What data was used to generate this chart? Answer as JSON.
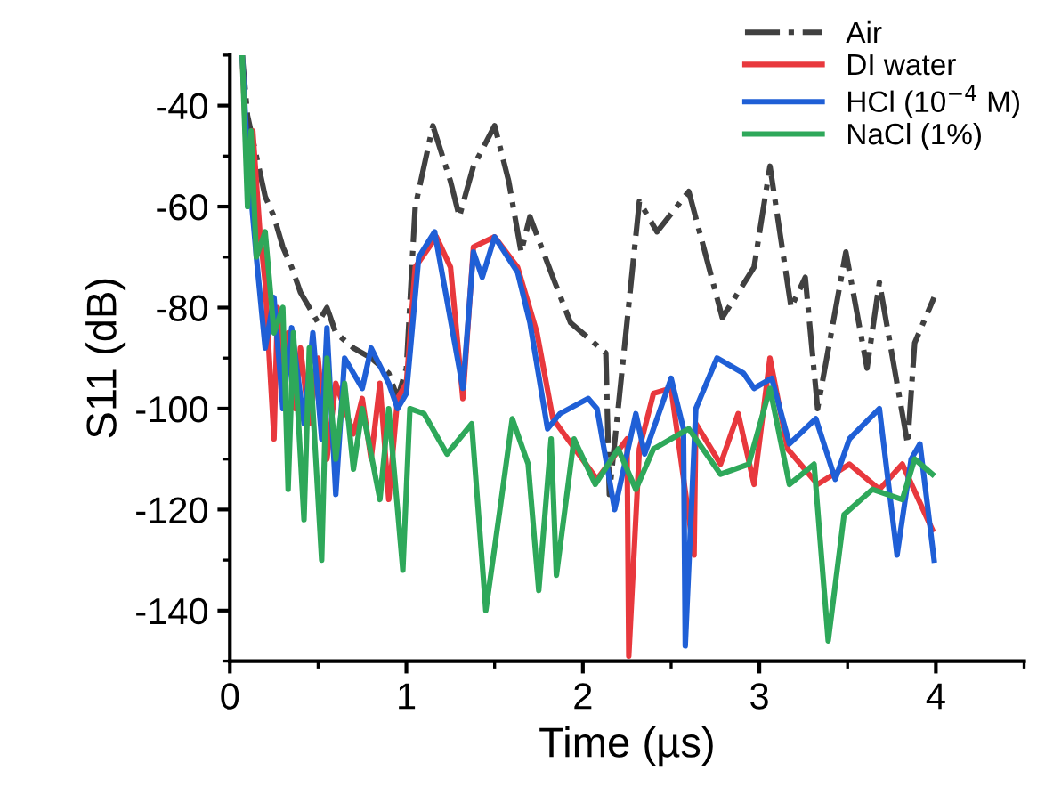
{
  "chart_data": {
    "type": "line",
    "xlabel": "Time (µs)",
    "ylabel": "S11 (dB)",
    "xlim": [
      0,
      4.5
    ],
    "ylim": [
      -150,
      -30
    ],
    "xticks": [
      0,
      1,
      2,
      3,
      4
    ],
    "yticks": [
      -140,
      -120,
      -100,
      -80,
      -60,
      -40
    ],
    "grid": false,
    "legend": "top right",
    "marker": "none",
    "series": [
      {
        "name": "Air",
        "color": "#404040",
        "line_style": "dashdot",
        "x": [
          0.07,
          0.1,
          0.15,
          0.2,
          0.25,
          0.3,
          0.35,
          0.4,
          0.45,
          0.5,
          0.55,
          0.6,
          0.7,
          0.8,
          0.9,
          0.95,
          1.0,
          1.05,
          1.15,
          1.25,
          1.3,
          1.38,
          1.5,
          1.58,
          1.65,
          1.7,
          1.83,
          1.93,
          2.13,
          2.15,
          2.32,
          2.42,
          2.6,
          2.79,
          2.97,
          3.06,
          3.18,
          3.26,
          3.33,
          3.49,
          3.61,
          3.68,
          3.84,
          3.88,
          3.99
        ],
        "values": [
          -30,
          -42,
          -50,
          -58,
          -62,
          -68,
          -72,
          -77,
          -80,
          -83,
          -80,
          -85,
          -88,
          -90,
          -93,
          -98,
          -92,
          -60,
          -44,
          -55,
          -62,
          -52,
          -44,
          -55,
          -69,
          -62,
          -74,
          -83,
          -89,
          -117,
          -59,
          -65,
          -57,
          -82,
          -72,
          -52,
          -80,
          -74,
          -100,
          -69,
          -92,
          -75,
          -107,
          -87,
          -78
        ]
      },
      {
        "name": "DI water",
        "color": "#e8383d",
        "x": [
          0.07,
          0.1,
          0.13,
          0.17,
          0.2,
          0.22,
          0.25,
          0.27,
          0.3,
          0.33,
          0.37,
          0.4,
          0.45,
          0.5,
          0.55,
          0.6,
          0.7,
          0.75,
          0.8,
          0.85,
          0.9,
          0.95,
          1.0,
          1.05,
          1.17,
          1.25,
          1.32,
          1.38,
          1.5,
          1.63,
          1.74,
          1.83,
          2.08,
          2.25,
          2.26,
          2.32,
          2.4,
          2.5,
          2.63,
          2.64,
          2.78,
          2.88,
          2.97,
          3.06,
          3.16,
          3.33,
          3.51,
          3.68,
          3.81,
          3.98
        ],
        "values": [
          -30,
          -55,
          -45,
          -65,
          -75,
          -88,
          -106,
          -80,
          -92,
          -85,
          -100,
          -88,
          -103,
          -90,
          -110,
          -95,
          -105,
          -98,
          -110,
          -95,
          -118,
          -98,
          -95,
          -72,
          -66,
          -72,
          -98,
          -68,
          -66,
          -72,
          -85,
          -102,
          -114,
          -106,
          -149,
          -108,
          -97,
          -96,
          -129,
          -103,
          -111,
          -101,
          -115,
          -90,
          -108,
          -115,
          -111,
          -116,
          -111,
          -124
        ]
      },
      {
        "name": "HCl (10$^{−4}$ M)",
        "color": "#1f5fd6",
        "x": [
          0.07,
          0.1,
          0.15,
          0.2,
          0.25,
          0.3,
          0.35,
          0.42,
          0.47,
          0.52,
          0.55,
          0.6,
          0.65,
          0.75,
          0.8,
          0.9,
          0.95,
          1.0,
          1.07,
          1.16,
          1.32,
          1.38,
          1.43,
          1.5,
          1.63,
          1.7,
          1.8,
          1.87,
          2.03,
          2.08,
          2.18,
          2.3,
          2.35,
          2.5,
          2.57,
          2.58,
          2.64,
          2.76,
          2.91,
          2.97,
          3.07,
          3.17,
          3.32,
          3.43,
          3.51,
          3.68,
          3.78,
          3.86,
          3.91,
          3.99
        ],
        "values": [
          -30,
          -50,
          -70,
          -88,
          -78,
          -100,
          -84,
          -103,
          -85,
          -106,
          -84,
          -117,
          -90,
          -96,
          -88,
          -95,
          -100,
          -97,
          -70,
          -65,
          -96,
          -69,
          -74,
          -66,
          -73,
          -83,
          -104,
          -101,
          -98,
          -100,
          -120,
          -101,
          -109,
          -94,
          -104,
          -147,
          -100,
          -90,
          -93,
          -96,
          -94,
          -107,
          -102,
          -114,
          -106,
          -100,
          -129,
          -110,
          -107,
          -130
        ]
      },
      {
        "name": "NaCl (1%)",
        "color": "#2ea85a",
        "x": [
          0.07,
          0.1,
          0.12,
          0.15,
          0.2,
          0.25,
          0.3,
          0.33,
          0.36,
          0.42,
          0.45,
          0.52,
          0.55,
          0.6,
          0.65,
          0.7,
          0.75,
          0.85,
          0.9,
          0.98,
          1.02,
          1.1,
          1.23,
          1.37,
          1.45,
          1.53,
          1.6,
          1.69,
          1.75,
          1.82,
          1.85,
          1.95,
          2.07,
          2.2,
          2.3,
          2.4,
          2.5,
          2.6,
          2.78,
          2.94,
          3.06,
          3.17,
          3.31,
          3.39,
          3.48,
          3.64,
          3.81,
          3.88,
          3.98
        ],
        "values": [
          -30,
          -60,
          -45,
          -70,
          -65,
          -85,
          -80,
          -116,
          -85,
          -122,
          -88,
          -130,
          -90,
          -110,
          -95,
          -112,
          -100,
          -118,
          -100,
          -132,
          -100,
          -101,
          -109,
          -103,
          -140,
          -120,
          -102,
          -111,
          -136,
          -106,
          -133,
          -106,
          -115,
          -108,
          -116,
          -108,
          -106,
          -104,
          -113,
          -111,
          -96,
          -115,
          -111,
          -146,
          -121,
          -116,
          -118,
          -110,
          -113
        ]
      }
    ]
  }
}
